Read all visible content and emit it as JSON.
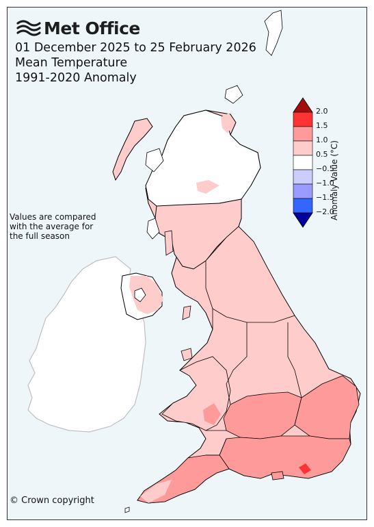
{
  "brand": {
    "name": "Met Office",
    "logo_icon": "met-office-wave-icon"
  },
  "title": {
    "period": "01 December 2025 to 25 February 2026",
    "variable": "Mean Temperature",
    "baseline": "1991-2020 Anomaly"
  },
  "note": {
    "lines": [
      "Values are compared",
      "with the average for",
      "the full season"
    ]
  },
  "copyright": "© Crown copyright",
  "legend": {
    "title": "Anomaly Value (°C)",
    "ticks": [
      "2.0",
      "1.5",
      "1.0",
      "0.5",
      "−0.5",
      "−1.0",
      "−1.5",
      "−2.0"
    ],
    "bins": [
      {
        "range": "> 2.0",
        "color": "#a50d0d"
      },
      {
        "range": "1.5 to 2.0",
        "color": "#ff3333"
      },
      {
        "range": "1.0 to 1.5",
        "color": "#ff9a9a"
      },
      {
        "range": "0.5 to 1.0",
        "color": "#ffcccc"
      },
      {
        "range": "-0.5 to 0.5",
        "color": "#ffffff"
      },
      {
        "range": "-1.0 to -0.5",
        "color": "#ccccff"
      },
      {
        "range": "-1.5 to -1.0",
        "color": "#9a9aff"
      },
      {
        "range": "-2.0 to -1.5",
        "color": "#3366ff"
      },
      {
        "range": "< -2.0",
        "color": "#00009a"
      }
    ]
  },
  "map": {
    "regions": [
      {
        "name": "Northern Scotland",
        "anomaly_class": "-0.5 to 0.5"
      },
      {
        "name": "Southern Scotland",
        "anomaly_class": "0.5 to 1.0"
      },
      {
        "name": "Northern Ireland",
        "anomaly_class": "-0.5 to 0.5"
      },
      {
        "name": "Northern England",
        "anomaly_class": "0.5 to 1.0"
      },
      {
        "name": "Wales",
        "anomaly_class": "0.5 to 1.0"
      },
      {
        "name": "Midlands",
        "anomaly_class": "1.0 to 1.5"
      },
      {
        "name": "East Anglia",
        "anomaly_class": "1.0 to 1.5"
      },
      {
        "name": "Southern England",
        "anomaly_class": "1.0 to 1.5"
      },
      {
        "name": "South West England",
        "anomaly_class": "1.0 to 1.5"
      }
    ],
    "ireland_color": "#ffffff",
    "sea_color": "#eef6fa"
  }
}
